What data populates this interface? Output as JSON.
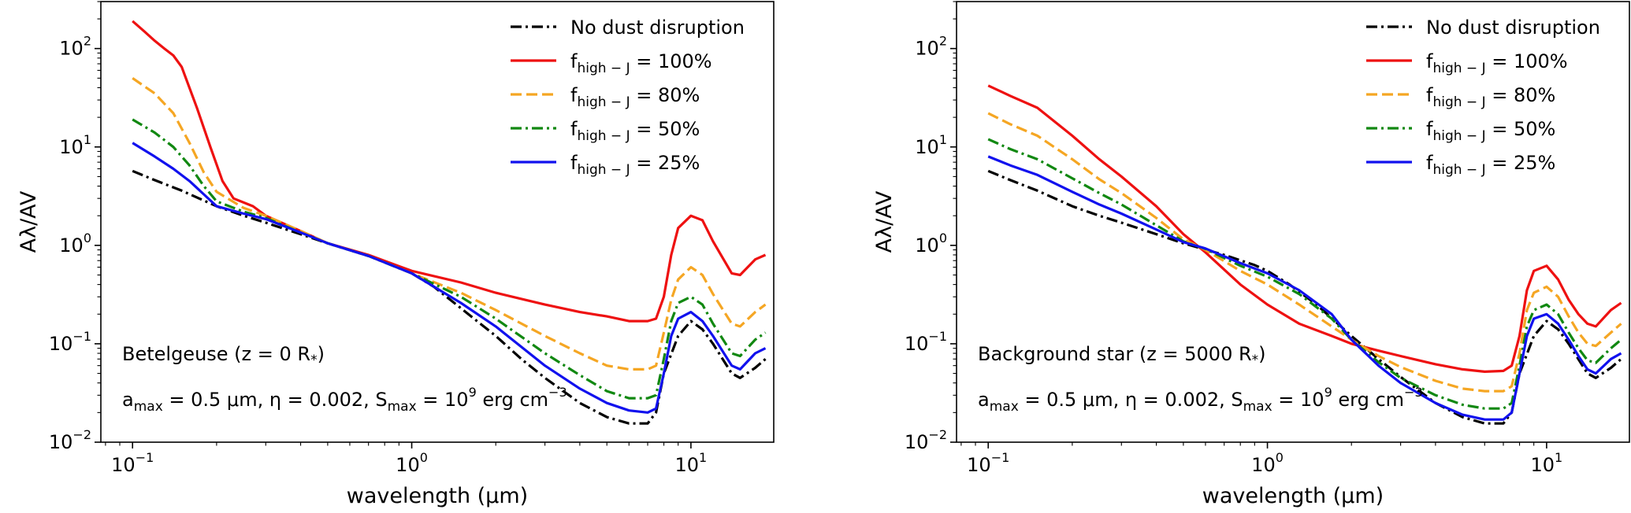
{
  "chart_data": [
    {
      "type": "line",
      "xscale": "log",
      "yscale": "log",
      "xlim": [
        0.077,
        19.8
      ],
      "ylim": [
        0.01,
        300
      ],
      "xlabel": "wavelength (μm)",
      "ylabel": "Aλ/AV",
      "xticks": [
        {
          "value": 0.1,
          "label": "10",
          "exp": "−1"
        },
        {
          "value": 1,
          "label": "10",
          "exp": "0"
        },
        {
          "value": 10,
          "label": "10",
          "exp": "1"
        }
      ],
      "yticks": [
        {
          "value": 0.01,
          "label": "10",
          "exp": "−2"
        },
        {
          "value": 0.1,
          "label": "10",
          "exp": "−1"
        },
        {
          "value": 1,
          "label": "10",
          "exp": "0"
        },
        {
          "value": 10,
          "label": "10",
          "exp": "1"
        },
        {
          "value": 100,
          "label": "10",
          "exp": "2"
        }
      ],
      "annotation": {
        "line1": {
          "main": "Betelgeuse (z = 0 R",
          "sub": "*",
          "tail": ")"
        },
        "line2": {
          "p1": "a",
          "p1sub": "max",
          "p2": " = 0.5 μm, η = 0.002, S",
          "p2sub": "max",
          "p3": " = 10",
          "p3sup": "9",
          "p4": " erg cm",
          "p4sup": "−3"
        }
      },
      "legend": {
        "position": "top-right"
      },
      "series": [
        {
          "name": "No dust disruption",
          "label_main": "No dust disruption",
          "label_sub": "",
          "label_tail": "",
          "color": "#000000",
          "dash": "dashdot",
          "x": [
            0.1,
            0.12,
            0.15,
            0.2,
            0.25,
            0.3,
            0.4,
            0.5,
            0.7,
            0.9,
            1.0,
            1.2,
            1.5,
            2.0,
            2.5,
            3.0,
            4.0,
            5.0,
            6.0,
            7.0,
            7.5,
            8.0,
            9.0,
            10.0,
            11.0,
            12.0,
            14.0,
            15.0,
            17.0,
            18.5
          ],
          "y": [
            5.7,
            4.6,
            3.6,
            2.5,
            2.0,
            1.7,
            1.3,
            1.05,
            0.78,
            0.6,
            0.52,
            0.38,
            0.23,
            0.12,
            0.068,
            0.045,
            0.025,
            0.018,
            0.0155,
            0.0155,
            0.02,
            0.05,
            0.12,
            0.17,
            0.14,
            0.1,
            0.05,
            0.045,
            0.057,
            0.07
          ]
        },
        {
          "name": "f_high-J = 100%",
          "label_main": "f",
          "label_sub": "high − J",
          "label_tail": " = 100%",
          "color": "#ee1111",
          "dash": "solid",
          "x": [
            0.1,
            0.11,
            0.12,
            0.13,
            0.14,
            0.15,
            0.17,
            0.19,
            0.21,
            0.23,
            0.27,
            0.3,
            0.4,
            0.5,
            0.7,
            1.0,
            1.5,
            2.0,
            3.0,
            4.0,
            5.0,
            6.0,
            7.0,
            7.5,
            8.0,
            8.5,
            9.0,
            10.0,
            11.0,
            12.0,
            14.0,
            15.0,
            17.0,
            18.5
          ],
          "y": [
            190,
            150,
            120,
            100,
            85,
            65,
            25,
            10,
            4.5,
            3.0,
            2.5,
            2.0,
            1.4,
            1.05,
            0.8,
            0.55,
            0.42,
            0.33,
            0.25,
            0.21,
            0.19,
            0.17,
            0.17,
            0.18,
            0.3,
            0.8,
            1.5,
            2.0,
            1.8,
            1.1,
            0.52,
            0.5,
            0.72,
            0.8
          ]
        },
        {
          "name": "f_high-J = 80%",
          "label_main": "f",
          "label_sub": "high − J",
          "label_tail": " = 80%",
          "color": "#f5a623",
          "dash": "dashed",
          "x": [
            0.1,
            0.12,
            0.14,
            0.16,
            0.18,
            0.2,
            0.25,
            0.3,
            0.4,
            0.5,
            0.7,
            1.0,
            1.5,
            2.0,
            3.0,
            4.0,
            5.0,
            6.0,
            7.0,
            7.5,
            8.0,
            8.5,
            9.0,
            10.0,
            11.0,
            12.0,
            14.0,
            15.0,
            17.0,
            18.5
          ],
          "y": [
            50,
            35,
            22,
            11,
            5.5,
            3.5,
            2.4,
            2.0,
            1.4,
            1.05,
            0.78,
            0.52,
            0.33,
            0.22,
            0.12,
            0.08,
            0.06,
            0.055,
            0.055,
            0.06,
            0.13,
            0.28,
            0.45,
            0.6,
            0.5,
            0.32,
            0.16,
            0.15,
            0.21,
            0.25
          ]
        },
        {
          "name": "f_high-J = 50%",
          "label_main": "f",
          "label_sub": "high − J",
          "label_tail": " = 50%",
          "color": "#118811",
          "dash": "dashdot",
          "x": [
            0.1,
            0.12,
            0.14,
            0.16,
            0.18,
            0.2,
            0.25,
            0.3,
            0.4,
            0.5,
            0.7,
            1.0,
            1.5,
            2.0,
            3.0,
            4.0,
            5.0,
            6.0,
            7.0,
            7.5,
            8.0,
            8.5,
            9.0,
            10.0,
            11.0,
            12.0,
            14.0,
            15.0,
            17.0,
            18.5
          ],
          "y": [
            19,
            14,
            10,
            6.5,
            4.0,
            2.8,
            2.2,
            1.9,
            1.35,
            1.05,
            0.78,
            0.52,
            0.3,
            0.18,
            0.08,
            0.048,
            0.033,
            0.028,
            0.028,
            0.03,
            0.07,
            0.17,
            0.26,
            0.3,
            0.25,
            0.16,
            0.08,
            0.075,
            0.11,
            0.13
          ]
        },
        {
          "name": "f_high-J = 25%",
          "label_main": "f",
          "label_sub": "high − J",
          "label_tail": " = 25%",
          "color": "#1111ee",
          "dash": "solid",
          "x": [
            0.1,
            0.12,
            0.14,
            0.16,
            0.18,
            0.2,
            0.25,
            0.3,
            0.4,
            0.5,
            0.7,
            1.0,
            1.5,
            2.0,
            3.0,
            4.0,
            5.0,
            6.0,
            7.0,
            7.5,
            8.0,
            8.5,
            9.0,
            10.0,
            11.0,
            12.0,
            14.0,
            15.0,
            17.0,
            18.5
          ],
          "y": [
            11,
            8,
            6,
            4.5,
            3.3,
            2.5,
            2.1,
            1.85,
            1.35,
            1.05,
            0.78,
            0.52,
            0.26,
            0.15,
            0.06,
            0.035,
            0.025,
            0.021,
            0.02,
            0.022,
            0.05,
            0.12,
            0.18,
            0.21,
            0.17,
            0.12,
            0.06,
            0.055,
            0.08,
            0.09
          ]
        }
      ]
    },
    {
      "type": "line",
      "xscale": "log",
      "yscale": "log",
      "xlim": [
        0.077,
        19.8
      ],
      "ylim": [
        0.01,
        300
      ],
      "xlabel": "wavelength (μm)",
      "ylabel": "Aλ/AV",
      "xticks": [
        {
          "value": 0.1,
          "label": "10",
          "exp": "−1"
        },
        {
          "value": 1,
          "label": "10",
          "exp": "0"
        },
        {
          "value": 10,
          "label": "10",
          "exp": "1"
        }
      ],
      "yticks": [
        {
          "value": 0.01,
          "label": "10",
          "exp": "−2"
        },
        {
          "value": 0.1,
          "label": "10",
          "exp": "−1"
        },
        {
          "value": 1,
          "label": "10",
          "exp": "0"
        },
        {
          "value": 10,
          "label": "10",
          "exp": "1"
        },
        {
          "value": 100,
          "label": "10",
          "exp": "2"
        }
      ],
      "annotation": {
        "line1": {
          "main": "Background star (z = 5000 R",
          "sub": "*",
          "tail": ")"
        },
        "line2": {
          "p1": "a",
          "p1sub": "max",
          "p2": " = 0.5 μm, η = 0.002, S",
          "p2sub": "max",
          "p3": " = 10",
          "p3sup": "9",
          "p4": " erg cm",
          "p4sup": "−3"
        }
      },
      "legend": {
        "position": "top-right"
      },
      "series": [
        {
          "name": "No dust disruption",
          "label_main": "No dust disruption",
          "label_sub": "",
          "label_tail": "",
          "color": "#000000",
          "dash": "dashdot",
          "x": [
            0.1,
            0.12,
            0.15,
            0.2,
            0.25,
            0.3,
            0.4,
            0.5,
            0.7,
            0.9,
            1.0,
            1.2,
            1.5,
            2.0,
            2.5,
            3.0,
            4.0,
            5.0,
            6.0,
            7.0,
            7.5,
            8.0,
            9.0,
            10.0,
            11.0,
            12.0,
            14.0,
            15.0,
            17.0,
            18.5
          ],
          "y": [
            5.7,
            4.6,
            3.6,
            2.5,
            2.0,
            1.7,
            1.3,
            1.05,
            0.8,
            0.63,
            0.55,
            0.4,
            0.25,
            0.12,
            0.07,
            0.046,
            0.025,
            0.018,
            0.0155,
            0.0155,
            0.02,
            0.05,
            0.12,
            0.17,
            0.14,
            0.1,
            0.05,
            0.045,
            0.057,
            0.07
          ]
        },
        {
          "name": "f_high-J = 100%",
          "label_main": "f",
          "label_sub": "high − J",
          "label_tail": " = 100%",
          "color": "#ee1111",
          "dash": "solid",
          "x": [
            0.1,
            0.12,
            0.15,
            0.2,
            0.25,
            0.3,
            0.4,
            0.5,
            0.6,
            0.8,
            1.0,
            1.3,
            1.7,
            2.0,
            2.5,
            3.0,
            4.0,
            5.0,
            6.0,
            7.0,
            7.5,
            8.0,
            8.5,
            9.0,
            10.0,
            11.0,
            12.0,
            13.0,
            14.0,
            15.0,
            17.0,
            18.5
          ],
          "y": [
            42,
            33,
            25,
            13,
            7.5,
            5.0,
            2.5,
            1.3,
            0.85,
            0.4,
            0.25,
            0.16,
            0.12,
            0.1,
            0.085,
            0.075,
            0.062,
            0.055,
            0.052,
            0.053,
            0.06,
            0.12,
            0.35,
            0.55,
            0.62,
            0.45,
            0.28,
            0.2,
            0.16,
            0.15,
            0.22,
            0.26
          ]
        },
        {
          "name": "f_high-J = 80%",
          "label_main": "f",
          "label_sub": "high − J",
          "label_tail": " = 80%",
          "color": "#f5a623",
          "dash": "dashed",
          "x": [
            0.1,
            0.12,
            0.15,
            0.2,
            0.25,
            0.3,
            0.4,
            0.5,
            0.6,
            0.8,
            1.0,
            1.3,
            1.7,
            2.0,
            2.5,
            3.0,
            4.0,
            5.0,
            6.0,
            7.0,
            7.5,
            8.0,
            8.5,
            9.0,
            10.0,
            11.0,
            12.0,
            13.0,
            14.0,
            15.0,
            17.0,
            18.5
          ],
          "y": [
            22,
            17,
            13,
            7.5,
            4.7,
            3.4,
            1.9,
            1.15,
            0.9,
            0.55,
            0.4,
            0.25,
            0.15,
            0.11,
            0.075,
            0.058,
            0.042,
            0.035,
            0.033,
            0.033,
            0.037,
            0.08,
            0.22,
            0.33,
            0.38,
            0.3,
            0.19,
            0.13,
            0.1,
            0.095,
            0.13,
            0.16
          ]
        },
        {
          "name": "f_high-J = 50%",
          "label_main": "f",
          "label_sub": "high − J",
          "label_tail": " = 50%",
          "color": "#118811",
          "dash": "dashdot",
          "x": [
            0.1,
            0.12,
            0.15,
            0.2,
            0.25,
            0.3,
            0.4,
            0.5,
            0.6,
            0.8,
            1.0,
            1.3,
            1.7,
            2.0,
            2.5,
            3.0,
            4.0,
            5.0,
            6.0,
            7.0,
            7.5,
            8.0,
            8.5,
            9.0,
            10.0,
            11.0,
            12.0,
            13.0,
            14.0,
            15.0,
            17.0,
            18.5
          ],
          "y": [
            12,
            9.5,
            7.5,
            4.8,
            3.4,
            2.6,
            1.6,
            1.1,
            0.92,
            0.62,
            0.48,
            0.32,
            0.18,
            0.11,
            0.065,
            0.045,
            0.03,
            0.024,
            0.022,
            0.022,
            0.025,
            0.06,
            0.15,
            0.22,
            0.25,
            0.2,
            0.13,
            0.09,
            0.068,
            0.064,
            0.09,
            0.11
          ]
        },
        {
          "name": "f_high-J = 25%",
          "label_main": "f",
          "label_sub": "high − J",
          "label_tail": " = 25%",
          "color": "#1111ee",
          "dash": "solid",
          "x": [
            0.1,
            0.12,
            0.15,
            0.2,
            0.25,
            0.3,
            0.4,
            0.5,
            0.6,
            0.8,
            1.0,
            1.3,
            1.7,
            2.0,
            2.5,
            3.0,
            4.0,
            5.0,
            6.0,
            7.0,
            7.5,
            8.0,
            8.5,
            9.0,
            10.0,
            11.0,
            12.0,
            13.0,
            14.0,
            15.0,
            17.0,
            18.5
          ],
          "y": [
            8.0,
            6.5,
            5.2,
            3.5,
            2.6,
            2.1,
            1.45,
            1.08,
            0.93,
            0.66,
            0.52,
            0.35,
            0.2,
            0.11,
            0.06,
            0.04,
            0.025,
            0.019,
            0.017,
            0.017,
            0.02,
            0.05,
            0.12,
            0.18,
            0.2,
            0.16,
            0.11,
            0.075,
            0.055,
            0.05,
            0.07,
            0.08
          ]
        }
      ]
    }
  ]
}
